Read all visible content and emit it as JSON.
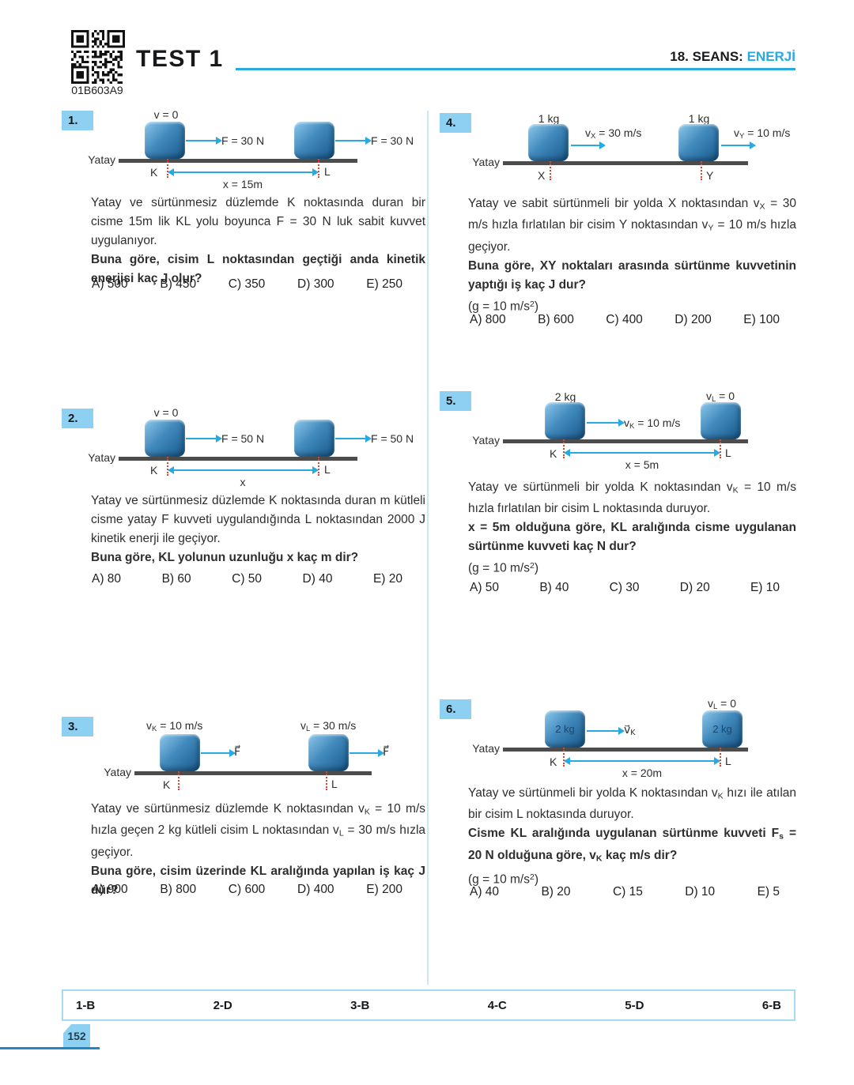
{
  "page": {
    "qr_code_label": "01B603A9",
    "test_title": "TEST 1",
    "session_label": "18. SEANS:",
    "session_topic": "ENERJİ",
    "page_number": "152"
  },
  "colors": {
    "accent": "#29A9E1",
    "badge_blue": "#8DD0F1",
    "block_blue_dark": "#18598A",
    "ground_gray": "#4C4C4C",
    "marker_red": "#E2412B"
  },
  "answer_key": [
    "1-B",
    "2-D",
    "3-B",
    "4-C",
    "5-D",
    "6-B"
  ],
  "questions": [
    {
      "number": "1.",
      "diagram": {
        "v_top": [
          {
            "t": "v = 0"
          }
        ],
        "f_left": [
          {
            "t": "F = 30 N"
          }
        ],
        "f_right": [
          {
            "t": "F = 30 N"
          }
        ],
        "surface": [
          {
            "t": "Yatay"
          }
        ],
        "p_left": [
          {
            "t": "K"
          }
        ],
        "p_right": [
          {
            "t": "L"
          }
        ],
        "dist": [
          {
            "t": "x = 15m"
          }
        ]
      },
      "paragraphs": [
        [
          {
            "t": "Yatay ve sürtünmesiz düzlemde K noktasında duran bir cisme 15m lik KL yolu boyunca F = 30 N luk sabit kuvvet uygulanıyor."
          }
        ],
        [
          {
            "t": "Buna göre, cisim L noktasından geçtiği anda kinetik enerjisi kaç J olur?",
            "c": "b"
          }
        ]
      ],
      "options": [
        "A) 500",
        "B) 450",
        "C) 350",
        "D) 300",
        "E) 250"
      ]
    },
    {
      "number": "2.",
      "diagram": {
        "v_top": [
          {
            "t": "v = 0"
          }
        ],
        "f_left": [
          {
            "t": "F = 50 N"
          }
        ],
        "f_right": [
          {
            "t": "F = 50 N"
          }
        ],
        "surface": [
          {
            "t": "Yatay"
          }
        ],
        "p_left": [
          {
            "t": "K"
          }
        ],
        "p_right": [
          {
            "t": "L"
          }
        ],
        "dist": [
          {
            "t": "x"
          }
        ]
      },
      "paragraphs": [
        [
          {
            "t": "Yatay ve sürtünmesiz düzlemde K noktasında duran m kütleli cisme yatay F kuvveti uygulandığında L noktasından 2000 J kinetik enerji ile geçiyor."
          }
        ],
        [
          {
            "t": "Buna göre, KL yolunun uzunluğu x kaç m dir?",
            "c": "b"
          }
        ]
      ],
      "options": [
        "A) 80",
        "B) 60",
        "C) 50",
        "D) 40",
        "E) 20"
      ]
    },
    {
      "number": "3.",
      "diagram": {
        "v_left": [
          {
            "t": "v"
          },
          {
            "t": "K",
            "c": "sub"
          },
          {
            "t": " = 10 m/s"
          }
        ],
        "v_right": [
          {
            "t": "v"
          },
          {
            "t": "L",
            "c": "sub"
          },
          {
            "t": " = 30 m/s"
          }
        ],
        "f_left": [
          {
            "t": "F⃗"
          }
        ],
        "f_right": [
          {
            "t": "F⃗"
          }
        ],
        "surface": [
          {
            "t": "Yatay"
          }
        ],
        "p_left": [
          {
            "t": "K"
          }
        ],
        "p_right": [
          {
            "t": "L"
          }
        ]
      },
      "paragraphs": [
        [
          {
            "t": "Yatay ve sürtünmesiz düzlemde K noktasından v"
          },
          {
            "t": "K",
            "c": "sub"
          },
          {
            "t": " = 10 m/s hızla geçen 2 kg kütleli cisim L noktasından v"
          },
          {
            "t": "L",
            "c": "sub"
          },
          {
            "t": " = 30 m/s hızla geçiyor."
          }
        ],
        [
          {
            "t": "Buna göre, cisim üzerinde KL aralığında yapılan iş kaç J dür?",
            "c": "b"
          }
        ]
      ],
      "options": [
        "A) 900",
        "B) 800",
        "C) 600",
        "D) 400",
        "E) 200"
      ]
    },
    {
      "number": "4.",
      "diagram": {
        "m_left": [
          {
            "t": "1 kg"
          }
        ],
        "m_right": [
          {
            "t": "1 kg"
          }
        ],
        "v_left": [
          {
            "t": "v"
          },
          {
            "t": "X",
            "c": "sub"
          },
          {
            "t": " = 30 m/s"
          }
        ],
        "v_right": [
          {
            "t": "v"
          },
          {
            "t": "Y",
            "c": "sub"
          },
          {
            "t": " = 10 m/s"
          }
        ],
        "surface": [
          {
            "t": "Yatay"
          }
        ],
        "p_left": [
          {
            "t": "X"
          }
        ],
        "p_right": [
          {
            "t": "Y"
          }
        ]
      },
      "paragraphs": [
        [
          {
            "t": "Yatay ve sabit sürtünmeli bir yolda X noktasından v"
          },
          {
            "t": "X",
            "c": "sub"
          },
          {
            "t": " = 30 m/s hızla fırlatılan bir cisim Y noktasından v"
          },
          {
            "t": "Y",
            "c": "sub"
          },
          {
            "t": " = 10 m/s hızla geçiyor."
          }
        ],
        [
          {
            "t": "Buna göre, XY noktaları arasında sürtünme kuvvetinin yaptığı iş kaç J dur?",
            "c": "b"
          }
        ],
        [
          {
            "t": "(g = 10 m/s"
          },
          {
            "t": "2",
            "c": "sup"
          },
          {
            "t": ")"
          }
        ]
      ],
      "options": [
        "A) 800",
        "B) 600",
        "C) 400",
        "D) 200",
        "E) 100"
      ]
    },
    {
      "number": "5.",
      "diagram": {
        "m_left": [
          {
            "t": "2 kg"
          }
        ],
        "v_right_top": [
          {
            "t": "v"
          },
          {
            "t": "L",
            "c": "sub"
          },
          {
            "t": " = 0"
          }
        ],
        "v_mid": [
          {
            "t": "v"
          },
          {
            "t": "K",
            "c": "sub"
          },
          {
            "t": " = 10 m/s"
          }
        ],
        "surface": [
          {
            "t": "Yatay"
          }
        ],
        "p_left": [
          {
            "t": "K"
          }
        ],
        "p_right": [
          {
            "t": "L"
          }
        ],
        "dist": [
          {
            "t": "x = 5m"
          }
        ]
      },
      "paragraphs": [
        [
          {
            "t": "Yatay ve sürtünmeli bir yolda K noktasından v"
          },
          {
            "t": "K",
            "c": "sub"
          },
          {
            "t": " = 10 m/s hızla fırlatılan bir cisim L noktasında duruyor."
          }
        ],
        [
          {
            "t": "x = 5m olduğuna göre, KL aralığında cisme uygulanan sürtünme kuvveti kaç N dur?",
            "c": "b"
          }
        ],
        [
          {
            "t": "(g = 10 m/s"
          },
          {
            "t": "2",
            "c": "sup"
          },
          {
            "t": ")"
          }
        ]
      ],
      "options": [
        "A) 50",
        "B) 40",
        "C) 30",
        "D) 20",
        "E) 10"
      ]
    },
    {
      "number": "6.",
      "diagram": {
        "m_in_left": [
          {
            "t": "2 kg"
          }
        ],
        "m_in_right": [
          {
            "t": "2 kg"
          }
        ],
        "v_right_top": [
          {
            "t": "v"
          },
          {
            "t": "L",
            "c": "sub"
          },
          {
            "t": " = 0"
          }
        ],
        "v_mid": [
          {
            "t": "v⃗"
          },
          {
            "t": "K",
            "c": "sub"
          }
        ],
        "surface": [
          {
            "t": "Yatay"
          }
        ],
        "p_left": [
          {
            "t": "K"
          }
        ],
        "p_right": [
          {
            "t": "L"
          }
        ],
        "dist": [
          {
            "t": "x = 20m"
          }
        ]
      },
      "paragraphs": [
        [
          {
            "t": "Yatay ve sürtünmeli bir yolda K noktasından v"
          },
          {
            "t": "K",
            "c": "sub"
          },
          {
            "t": " hızı ile atılan bir cisim L noktasında duruyor."
          }
        ],
        [
          {
            "t": "Cisme KL aralığında uygulanan sürtünme kuvveti F",
            "c": "b"
          },
          {
            "t": "s",
            "c": "b sub"
          },
          {
            "t": " = 20 N olduğuna göre, v",
            "c": "b"
          },
          {
            "t": "K",
            "c": "b sub"
          },
          {
            "t": " kaç m/s dir?",
            "c": "b"
          }
        ],
        [
          {
            "t": "(g = 10 m/s"
          },
          {
            "t": "2",
            "c": "sup"
          },
          {
            "t": ")"
          }
        ]
      ],
      "options": [
        "A) 40",
        "B) 20",
        "C) 15",
        "D) 10",
        "E) 5"
      ]
    }
  ]
}
